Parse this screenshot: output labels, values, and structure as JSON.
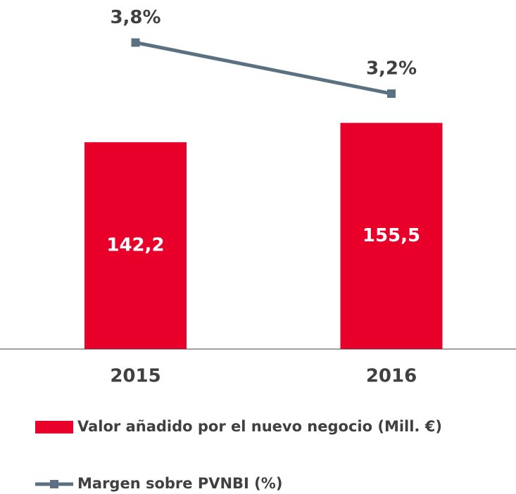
{
  "chart_data": {
    "type": "bar_line",
    "categories": [
      "2015",
      "2016"
    ],
    "series": [
      {
        "name": "Valor añadido por el nuevo negocio (Mill. €)",
        "type": "bar",
        "color": "#e8002a",
        "values": [
          142.2,
          155.5
        ],
        "value_labels": [
          "142,2",
          "155,5"
        ]
      },
      {
        "name": "Margen sobre PVNBI (%)",
        "type": "line",
        "axis": "y2",
        "color": "#5b7080",
        "values": [
          3.8,
          3.2
        ],
        "value_labels": [
          "3,8%",
          "3,2%"
        ]
      }
    ],
    "ylim": [
      0,
      240
    ],
    "y2lim": [
      0.2,
      4.3
    ]
  }
}
